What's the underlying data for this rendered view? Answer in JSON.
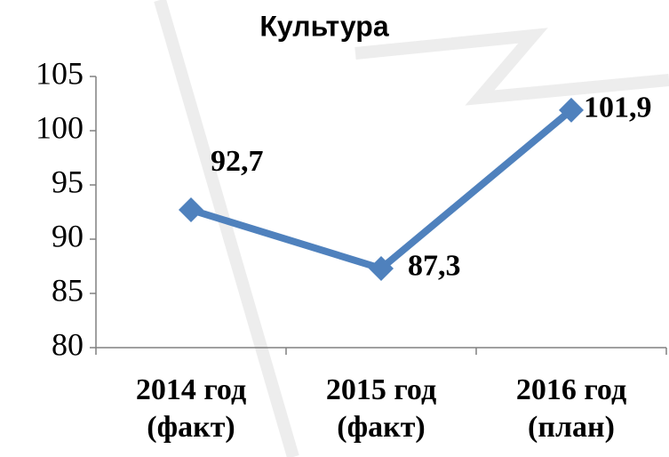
{
  "chart_data": {
    "type": "line",
    "title": "Культура",
    "categories": [
      "2014 год (факт)",
      "2015 год (факт)",
      "2016 год (план)"
    ],
    "series": [
      {
        "name": "Культура",
        "color": "#4f81bd",
        "values": [
          92.7,
          87.3,
          101.9
        ],
        "value_labels": [
          "92,7",
          "87,3",
          "101,9"
        ]
      }
    ],
    "ylim": [
      80,
      105
    ],
    "yticks": [
      80,
      85,
      90,
      95,
      100,
      105
    ],
    "grid": false
  }
}
